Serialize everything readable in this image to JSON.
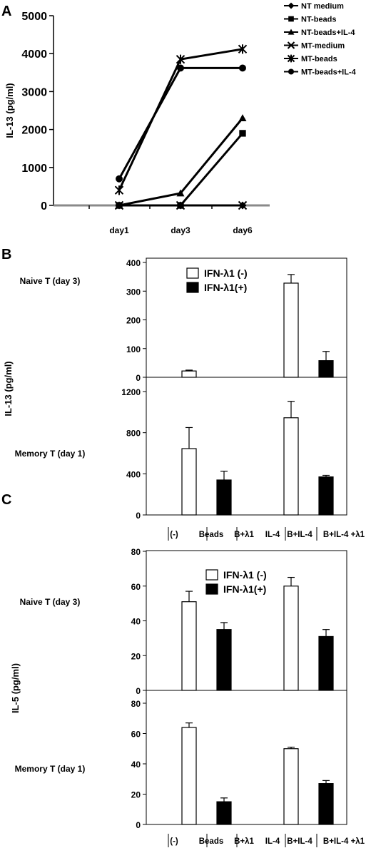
{
  "chart_data": [
    {
      "panel": "A",
      "type": "line",
      "x": [
        "day1",
        "day3",
        "day6"
      ],
      "ylabel": "IL-13 (pg/ml)",
      "ylim": [
        0,
        5000
      ],
      "yticks": [
        0,
        1000,
        2000,
        3000,
        4000,
        5000
      ],
      "legend_position": "top-right",
      "series": [
        {
          "name": "NT medium",
          "marker": "diamond",
          "values": [
            0,
            0,
            0
          ]
        },
        {
          "name": "NT-beads",
          "marker": "square",
          "values": [
            0,
            0,
            1900
          ]
        },
        {
          "name": "NT-beads+IL-4",
          "marker": "triangle",
          "values": [
            0,
            320,
            2300
          ]
        },
        {
          "name": "MT-medium",
          "marker": "x",
          "values": [
            0,
            0,
            0
          ]
        },
        {
          "name": "MT-beads",
          "marker": "asterisk",
          "values": [
            400,
            3850,
            4120
          ]
        },
        {
          "name": "MT-beads+IL-4",
          "marker": "circle",
          "values": [
            700,
            3620,
            3620
          ]
        }
      ]
    },
    {
      "panel": "B",
      "type": "bar",
      "ylabel": "IL-13 (pg/ml)",
      "categories": [
        "(-)",
        "Beads",
        "B+λ1",
        "IL-4",
        "B+IL-4",
        "B+IL-4 +λ1"
      ],
      "legend": [
        "IFN-λ1 (-)",
        "IFN-λ1(+)"
      ],
      "subplots": [
        {
          "label": "Naive T (day 3)",
          "ylim": [
            0,
            400
          ],
          "yticks": [
            0,
            100,
            200,
            300,
            400
          ],
          "bars": [
            {
              "category": "Beads",
              "series": "IFN-λ1 (-)",
              "value": 22,
              "error": 3
            },
            {
              "category": "B+IL-4",
              "series": "IFN-λ1 (-)",
              "value": 328,
              "error": 30
            },
            {
              "category": "B+IL-4",
              "series": "IFN-λ1(+)",
              "value": 58,
              "error": 32
            }
          ]
        },
        {
          "label": "Memory T (day 1)",
          "ylim": [
            0,
            1200
          ],
          "yticks": [
            0,
            400,
            800,
            1200
          ],
          "bars": [
            {
              "category": "Beads",
              "series": "IFN-λ1 (-)",
              "value": 645,
              "error": 205
            },
            {
              "category": "Beads",
              "series": "IFN-λ1(+)",
              "value": 340,
              "error": 85
            },
            {
              "category": "B+IL-4",
              "series": "IFN-λ1 (-)",
              "value": 945,
              "error": 160
            },
            {
              "category": "B+IL-4",
              "series": "IFN-λ1(+)",
              "value": 370,
              "error": 15
            }
          ]
        }
      ]
    },
    {
      "panel": "C",
      "type": "bar",
      "ylabel": "IL-5 (pg/ml)",
      "categories": [
        "(-)",
        "Beads",
        "B+λ1",
        "IL-4",
        "B+IL-4",
        "B+IL-4 +λ1"
      ],
      "legend": [
        "IFN-λ1 (-)",
        "IFN-λ1(+)"
      ],
      "subplots": [
        {
          "label": "Naive T (day 3)",
          "ylim": [
            0,
            80
          ],
          "yticks": [
            0,
            20,
            40,
            60,
            80
          ],
          "bars": [
            {
              "category": "Beads",
              "series": "IFN-λ1 (-)",
              "value": 51,
              "error": 6
            },
            {
              "category": "Beads",
              "series": "IFN-λ1(+)",
              "value": 35,
              "error": 4
            },
            {
              "category": "B+IL-4",
              "series": "IFN-λ1 (-)",
              "value": 60,
              "error": 5
            },
            {
              "category": "B+IL-4",
              "series": "IFN-λ1(+)",
              "value": 31,
              "error": 4
            }
          ]
        },
        {
          "label": "Memory T (day 1)",
          "ylim": [
            0,
            80
          ],
          "yticks": [
            0,
            20,
            40,
            60,
            80
          ],
          "bars": [
            {
              "category": "Beads",
              "series": "IFN-λ1 (-)",
              "value": 64,
              "error": 3
            },
            {
              "category": "Beads",
              "series": "IFN-λ1(+)",
              "value": 15,
              "error": 2.5
            },
            {
              "category": "B+IL-4",
              "series": "IFN-λ1 (-)",
              "value": 50,
              "error": 1
            },
            {
              "category": "B+IL-4",
              "series": "IFN-λ1(+)",
              "value": 27,
              "error": 2
            }
          ]
        }
      ]
    }
  ]
}
